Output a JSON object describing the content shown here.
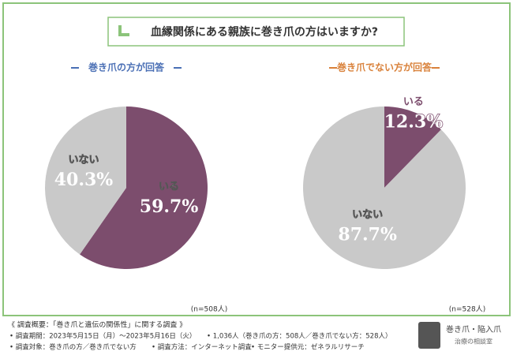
{
  "title": "血縁関係にある親族に巻き爪の方はいますか?",
  "chart_data": [
    {
      "type": "pie",
      "title": "巻き爪の方が回答",
      "categories": [
        "いる",
        "いない"
      ],
      "values": [
        59.7,
        40.3
      ],
      "value_labels": [
        "59.7%",
        "40.3%"
      ],
      "colors": [
        "#7c4d6d",
        "#c9c9c9"
      ],
      "title_color": "#4a6fb5",
      "note": "(n=508人)"
    },
    {
      "type": "pie",
      "title": "巻き爪でない方が回答",
      "categories": [
        "いる",
        "いない"
      ],
      "values": [
        12.3,
        87.7
      ],
      "value_labels": [
        "12.3%",
        "87.7%"
      ],
      "colors": [
        "#7c4d6d",
        "#c9c9c9"
      ],
      "title_color": "#d9813a",
      "note": "(n=528人)"
    }
  ],
  "footer": {
    "heading": "《 調査概要：「巻き爪と遺伝の関係性」に関する調査 》",
    "items": [
      "• 調査期間：2023年5月15日（月）～2023年5月16日（火）",
      "• 1,036人（巻き爪の方：508人／巻き爪でない方：528人）",
      "• 調査対象：巻き爪の方／巻き爪でない方",
      "• 調査方法：インターネット調査",
      "• モニター提供元：ゼネラルリサーチ"
    ]
  },
  "logo": {
    "line1": "巻き爪・陥入爪",
    "line2": "治療の相談室"
  }
}
